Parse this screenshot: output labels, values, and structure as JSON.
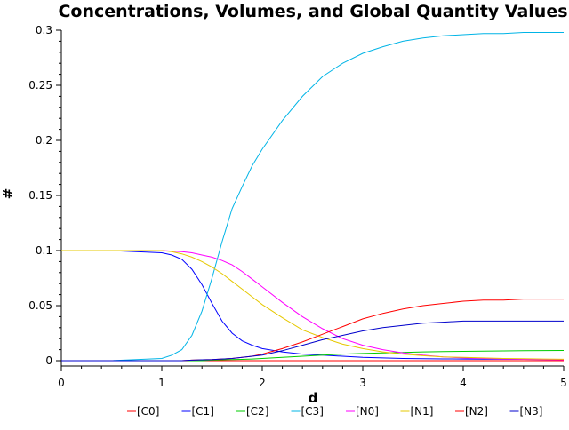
{
  "chart_data": {
    "type": "line",
    "title": "Concentrations, Volumes, and Global Quantity Values",
    "xlabel": "d",
    "ylabel": "#",
    "xlim": [
      0,
      5
    ],
    "ylim": [
      0,
      0.3
    ],
    "xticks": [
      0,
      1,
      2,
      3,
      4,
      5
    ],
    "xtick_labels": [
      "0",
      "1",
      "2",
      "3",
      "4",
      "5"
    ],
    "yticks": [
      0,
      0.05,
      0.1,
      0.15,
      0.2,
      0.25,
      0.3
    ],
    "ytick_labels": [
      "0",
      "0.05",
      "0.1",
      "0.15",
      "0.2",
      "0.25",
      "0.3"
    ],
    "grid": false,
    "legend_position": "bottom",
    "x": [
      0,
      0.5,
      1.0,
      1.1,
      1.2,
      1.3,
      1.4,
      1.5,
      1.6,
      1.7,
      1.8,
      1.9,
      2.0,
      2.2,
      2.4,
      2.6,
      2.8,
      3.0,
      3.2,
      3.4,
      3.6,
      3.8,
      4.0,
      4.2,
      4.4,
      4.6,
      4.8,
      5.0
    ],
    "series": [
      {
        "name": "[C0]",
        "color": "#ff0000",
        "values": [
          0,
          0,
          0,
          0,
          0,
          0,
          0,
          0,
          0,
          0,
          0,
          0,
          0,
          0,
          0,
          0,
          0,
          0,
          0,
          0,
          0,
          0,
          0,
          0,
          0,
          0,
          0,
          0
        ]
      },
      {
        "name": "[C1]",
        "color": "#0000ff",
        "values": [
          0.1,
          0.1,
          0.098,
          0.096,
          0.092,
          0.083,
          0.069,
          0.052,
          0.036,
          0.025,
          0.018,
          0.014,
          0.011,
          0.008,
          0.006,
          0.005,
          0.004,
          0.003,
          0.0025,
          0.002,
          0.0018,
          0.0016,
          0.0015,
          0.0014,
          0.0013,
          0.0012,
          0.0011,
          0.001
        ]
      },
      {
        "name": "[C2]",
        "color": "#00cc00",
        "values": [
          0,
          0,
          0,
          0,
          0,
          0,
          0,
          0.0005,
          0.0008,
          0.001,
          0.0012,
          0.0015,
          0.002,
          0.003,
          0.004,
          0.005,
          0.006,
          0.0065,
          0.007,
          0.0075,
          0.008,
          0.0082,
          0.0085,
          0.0087,
          0.0089,
          0.009,
          0.0092,
          0.0093
        ]
      },
      {
        "name": "[C3]",
        "color": "#00b4e6",
        "values": [
          0,
          0,
          0.002,
          0.005,
          0.01,
          0.023,
          0.045,
          0.075,
          0.108,
          0.138,
          0.158,
          0.177,
          0.192,
          0.218,
          0.24,
          0.258,
          0.27,
          0.279,
          0.285,
          0.29,
          0.293,
          0.295,
          0.296,
          0.297,
          0.297,
          0.298,
          0.298,
          0.298
        ]
      },
      {
        "name": "[N0]",
        "color": "#ff00ff",
        "values": [
          0.1,
          0.1,
          0.1,
          0.0995,
          0.099,
          0.098,
          0.096,
          0.094,
          0.091,
          0.087,
          0.081,
          0.074,
          0.067,
          0.053,
          0.04,
          0.029,
          0.02,
          0.014,
          0.01,
          0.007,
          0.005,
          0.0035,
          0.0025,
          0.002,
          0.0015,
          0.0012,
          0.001,
          0.0008
        ]
      },
      {
        "name": "[N1]",
        "color": "#e6c800",
        "values": [
          0.1,
          0.1,
          0.1,
          0.099,
          0.097,
          0.094,
          0.09,
          0.085,
          0.079,
          0.072,
          0.065,
          0.058,
          0.051,
          0.039,
          0.028,
          0.021,
          0.015,
          0.011,
          0.008,
          0.006,
          0.0045,
          0.0035,
          0.003,
          0.0025,
          0.002,
          0.0018,
          0.0015,
          0.0013
        ]
      },
      {
        "name": "[N2]",
        "color": "#ff0000",
        "values": [
          0,
          0,
          0,
          0,
          0,
          0.0005,
          0.0008,
          0.001,
          0.0015,
          0.002,
          0.003,
          0.004,
          0.006,
          0.011,
          0.017,
          0.024,
          0.031,
          0.038,
          0.043,
          0.047,
          0.05,
          0.052,
          0.054,
          0.055,
          0.055,
          0.056,
          0.056,
          0.056
        ]
      },
      {
        "name": "[N3]",
        "color": "#0000cc",
        "values": [
          0,
          0,
          0,
          0,
          0,
          0.0005,
          0.0008,
          0.001,
          0.0015,
          0.002,
          0.003,
          0.004,
          0.005,
          0.009,
          0.014,
          0.019,
          0.023,
          0.027,
          0.03,
          0.032,
          0.034,
          0.035,
          0.036,
          0.036,
          0.036,
          0.036,
          0.036,
          0.036
        ]
      }
    ]
  }
}
